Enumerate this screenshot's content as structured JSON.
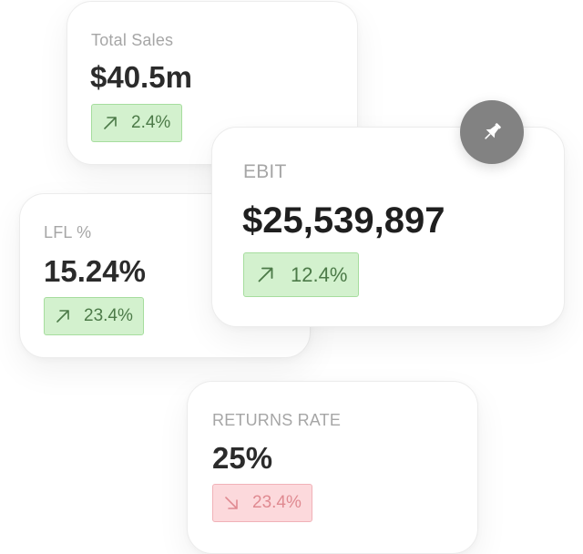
{
  "cards": [
    {
      "label": "Total Sales",
      "value": "$40.5m",
      "change": "2.4%",
      "direction": "up",
      "icon": "arrow-up-right-icon"
    },
    {
      "label": "LFL %",
      "value": "15.24%",
      "change": "23.4%",
      "direction": "up",
      "icon": "arrow-up-right-icon"
    },
    {
      "label": "EBIT",
      "value": "$25,539,897",
      "change": "12.4%",
      "direction": "up",
      "icon": "arrow-up-right-icon"
    },
    {
      "label": "RETURNS RATE",
      "value": "25%",
      "change": "23.4%",
      "direction": "down",
      "icon": "arrow-down-right-icon"
    }
  ],
  "pin_button": {
    "icon": "pin-icon"
  },
  "colors": {
    "up_badge_bg": "#d3f1ce",
    "up_badge_border": "#a6dd9e",
    "up_badge_text": "#4c7a48",
    "down_badge_bg": "#fcd9dc",
    "down_badge_border": "#f1b2b8",
    "down_badge_text": "#e08a91",
    "label_text": "#a6a6a6",
    "value_text": "#2b2b2b",
    "fab_bg": "#828282"
  }
}
